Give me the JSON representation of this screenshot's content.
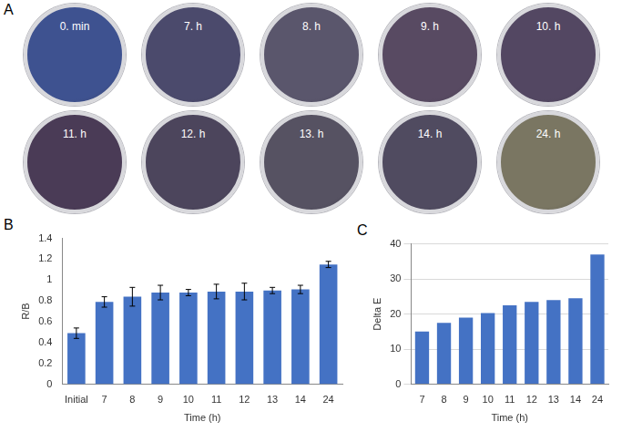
{
  "panel_a": {
    "letter": "A",
    "dishes": [
      {
        "label": "0. min",
        "color": "#3e5290"
      },
      {
        "label": "7. h",
        "color": "#4b4a6c"
      },
      {
        "label": "8. h",
        "color": "#5a566c"
      },
      {
        "label": "9. h",
        "color": "#584a62"
      },
      {
        "label": "10. h",
        "color": "#534762"
      },
      {
        "label": "11. h",
        "color": "#4a3b56"
      },
      {
        "label": "12. h",
        "color": "#4c455c"
      },
      {
        "label": "13. h",
        "color": "#565262"
      },
      {
        "label": "14. h",
        "color": "#504b60"
      },
      {
        "label": "24. h",
        "color": "#7a7662"
      }
    ]
  },
  "chart_data": [
    {
      "letter": "B",
      "type": "bar",
      "x_label": "Time (h)",
      "y_label": "R/B",
      "categories": [
        "Initial",
        "7",
        "8",
        "9",
        "10",
        "11",
        "12",
        "13",
        "14",
        "24"
      ],
      "values": [
        0.49,
        0.79,
        0.84,
        0.88,
        0.88,
        0.89,
        0.89,
        0.9,
        0.91,
        1.15
      ],
      "errors": [
        0.05,
        0.05,
        0.09,
        0.07,
        0.03,
        0.07,
        0.08,
        0.03,
        0.04,
        0.03
      ],
      "color": "#4472c4",
      "ylim": [
        0,
        1.4
      ],
      "yticks": [
        0,
        0.2,
        0.4,
        0.6,
        0.8,
        1,
        1.2,
        1.4
      ],
      "grid": false
    },
    {
      "letter": "C",
      "type": "bar",
      "x_label": "Time (h)",
      "y_label": "Delta E",
      "categories": [
        "7",
        "8",
        "9",
        "10",
        "11",
        "12",
        "13",
        "14",
        "24"
      ],
      "values": [
        15,
        17.5,
        19,
        20.3,
        22.5,
        23.5,
        24,
        24.5,
        37
      ],
      "color": "#4472c4",
      "ylim": [
        0,
        40
      ],
      "yticks": [
        0,
        10,
        20,
        30,
        40
      ],
      "grid": true
    }
  ]
}
